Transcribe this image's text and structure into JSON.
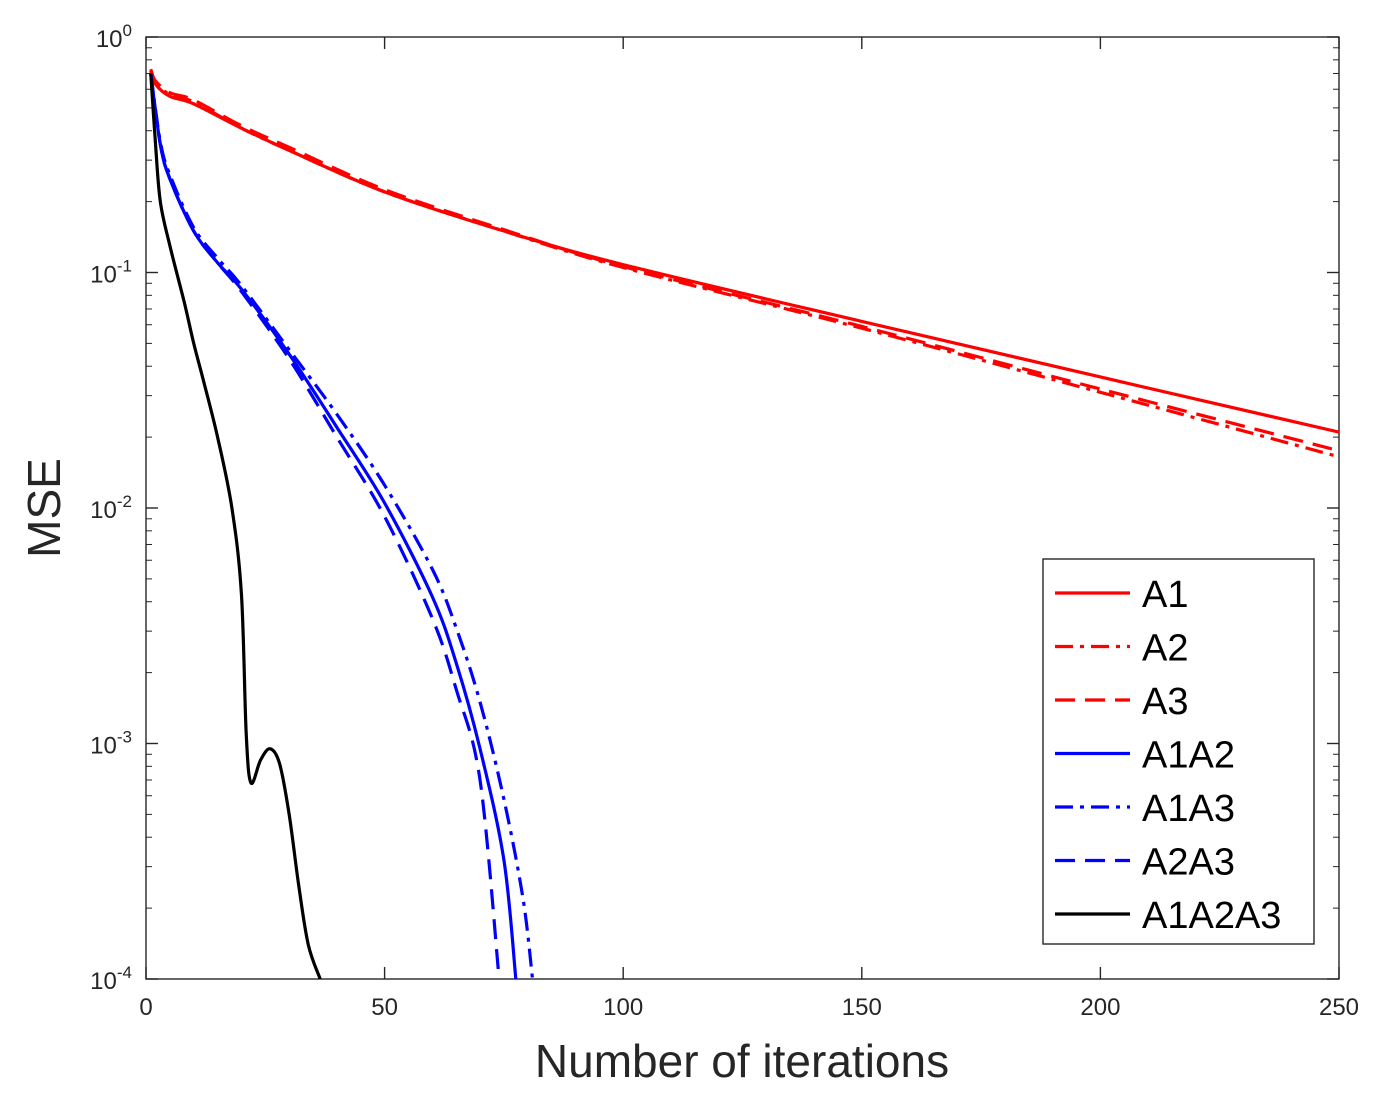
{
  "chart_data": {
    "type": "line",
    "title": "",
    "xlabel": "Number of iterations",
    "ylabel": "MSE",
    "xlim": [
      0,
      250
    ],
    "ylim": [
      0.0001,
      1
    ],
    "yscale": "log",
    "grid": false,
    "legend_position": "bottom-right",
    "x_ticks": [
      {
        "value": 0,
        "label": "0"
      },
      {
        "value": 50,
        "label": "50"
      },
      {
        "value": 100,
        "label": "100"
      },
      {
        "value": 150,
        "label": "150"
      },
      {
        "value": 200,
        "label": "200"
      },
      {
        "value": 250,
        "label": "250"
      }
    ],
    "y_ticks": [
      {
        "value": 1,
        "base": "10",
        "exp": "0"
      },
      {
        "value": 0.1,
        "base": "10",
        "exp": "-1"
      },
      {
        "value": 0.01,
        "base": "10",
        "exp": "-2"
      },
      {
        "value": 0.001,
        "base": "10",
        "exp": "-3"
      },
      {
        "value": 0.0001,
        "base": "10",
        "exp": "-4"
      }
    ],
    "series": [
      {
        "name": "A1",
        "color": "#ff0000",
        "style": "solid",
        "x": [
          1,
          2,
          5,
          10,
          20,
          30,
          50,
          75,
          100,
          150,
          200,
          250
        ],
        "y": [
          0.72,
          0.63,
          0.56,
          0.52,
          0.41,
          0.33,
          0.22,
          0.15,
          0.108,
          0.062,
          0.036,
          0.021
        ]
      },
      {
        "name": "A2",
        "color": "#ff0000",
        "style": "dashdot",
        "x": [
          1,
          2,
          5,
          10,
          20,
          30,
          50,
          75,
          100,
          150,
          200,
          250
        ],
        "y": [
          0.72,
          0.64,
          0.57,
          0.53,
          0.41,
          0.33,
          0.22,
          0.15,
          0.105,
          0.058,
          0.031,
          0.0165
        ]
      },
      {
        "name": "A3",
        "color": "#ff0000",
        "style": "dashed",
        "x": [
          1,
          2,
          5,
          10,
          20,
          30,
          50,
          75,
          100,
          150,
          200,
          250
        ],
        "y": [
          0.73,
          0.65,
          0.58,
          0.54,
          0.42,
          0.34,
          0.225,
          0.152,
          0.106,
          0.059,
          0.032,
          0.0175
        ]
      },
      {
        "name": "A1A2",
        "color": "#0000ff",
        "style": "solid",
        "x": [
          1,
          3,
          5,
          10,
          15,
          20,
          30,
          40,
          50,
          60,
          65,
          70,
          75,
          77.5
        ],
        "y": [
          0.7,
          0.35,
          0.25,
          0.15,
          0.11,
          0.085,
          0.045,
          0.022,
          0.0105,
          0.0042,
          0.0022,
          0.00095,
          0.00032,
          0.0001
        ]
      },
      {
        "name": "A1A3",
        "color": "#0000ff",
        "style": "dashdot",
        "x": [
          1,
          3,
          5,
          10,
          15,
          20,
          30,
          40,
          50,
          60,
          65,
          70,
          75,
          79,
          81
        ],
        "y": [
          0.7,
          0.36,
          0.26,
          0.155,
          0.115,
          0.088,
          0.047,
          0.025,
          0.0125,
          0.0055,
          0.0031,
          0.0015,
          0.00058,
          0.00022,
          0.0001
        ]
      },
      {
        "name": "A2A3",
        "color": "#0000ff",
        "style": "dashed",
        "x": [
          1,
          3,
          5,
          10,
          15,
          20,
          30,
          40,
          50,
          60,
          65,
          70,
          74
        ],
        "y": [
          0.7,
          0.35,
          0.25,
          0.15,
          0.11,
          0.083,
          0.043,
          0.02,
          0.0092,
          0.0034,
          0.0017,
          0.0007,
          0.0001
        ]
      },
      {
        "name": "A1A2A3",
        "color": "#000000",
        "style": "solid",
        "x": [
          1,
          2,
          3,
          5,
          8,
          10,
          12,
          15,
          18,
          20,
          21,
          22,
          24,
          26,
          28,
          30,
          32,
          34,
          36.5
        ],
        "y": [
          0.7,
          0.35,
          0.2,
          0.13,
          0.075,
          0.05,
          0.035,
          0.02,
          0.01,
          0.0043,
          0.0011,
          0.00068,
          0.00085,
          0.00095,
          0.00082,
          0.0005,
          0.00025,
          0.00014,
          0.0001
        ]
      }
    ]
  }
}
